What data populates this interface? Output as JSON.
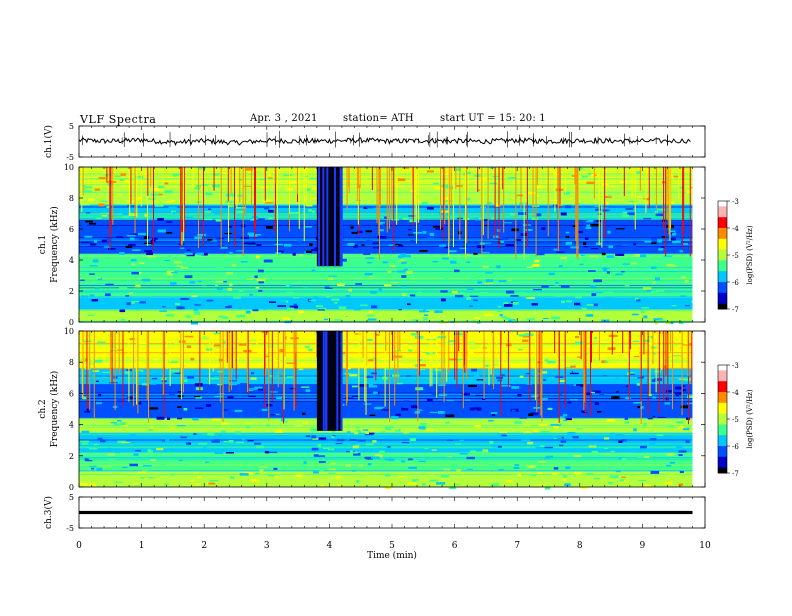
{
  "header": {
    "title": "VLF  Spectra",
    "date": "Apr. 3  , 2021",
    "station": "station= ATH",
    "start": "start  UT  =    15: 20: 1"
  },
  "chart_data": [
    {
      "type": "line",
      "panel": "ch1-waveform",
      "ylabel": "ch.1(V)",
      "ylim": [
        -5,
        5
      ],
      "yticks": [
        "5",
        "-5"
      ],
      "xlim": [
        0,
        10
      ],
      "line_color": "#000000",
      "x": [
        0,
        0.5,
        1,
        1.5,
        2,
        2.5,
        3,
        3.5,
        4,
        4.5,
        5,
        5.5,
        6,
        6.5,
        7,
        7.5,
        8,
        8.5,
        9,
        9.8
      ],
      "y": [
        0.4,
        0.1,
        0.5,
        -0.3,
        0.2,
        -0.4,
        0.3,
        0.1,
        0.2,
        0.4,
        0.1,
        0.3,
        0.2,
        0.0,
        0.4,
        0.1,
        0.3,
        0.2,
        0.1,
        0.3
      ]
    },
    {
      "type": "heatmap",
      "panel": "ch1-spectrogram",
      "ylabel": "ch.1\nFrequency (kHz)",
      "ylim": [
        0,
        10
      ],
      "yticks": [
        "0",
        "2",
        "4",
        "6",
        "8",
        "10"
      ],
      "xlim": [
        0,
        10
      ],
      "data_end_min": 9.8,
      "colorbar": {
        "label": "log(PSD) (V²/Hz)",
        "range": [
          -7,
          -3
        ],
        "ticks": [
          "-3",
          "-4",
          "-5",
          "-6",
          "-7"
        ],
        "colors": [
          "#000000",
          "#0000c8",
          "#0050ff",
          "#00c8ff",
          "#3cff8c",
          "#b4ff3c",
          "#ffff00",
          "#ff8c00",
          "#ff0000",
          "#ffb4b4",
          "#ffffff"
        ]
      },
      "band_levels": [
        {
          "f": [
            0,
            0.8
          ],
          "level": -5.2
        },
        {
          "f": [
            0.8,
            1.6
          ],
          "level": -5.9
        },
        {
          "f": [
            1.6,
            3.4
          ],
          "level": -5.6
        },
        {
          "f": [
            3.4,
            4.4
          ],
          "level": -5.4
        },
        {
          "f": [
            4.4,
            6.6
          ],
          "level": -6.3
        },
        {
          "f": [
            6.6,
            7.6
          ],
          "level": -5.8
        },
        {
          "f": [
            7.6,
            10
          ],
          "level": -4.9
        }
      ],
      "gap_min": [
        3.8,
        4.2
      ]
    },
    {
      "type": "heatmap",
      "panel": "ch2-spectrogram",
      "ylabel": "ch.2\nFrequency (kHz)",
      "ylim": [
        0,
        10
      ],
      "yticks": [
        "0",
        "2",
        "4",
        "6",
        "8",
        "10"
      ],
      "xlim": [
        0,
        10
      ],
      "data_end_min": 9.8,
      "colorbar": {
        "label": "log(PSD) (V²/Hz)",
        "range": [
          -7,
          -3
        ],
        "ticks": [
          "-3",
          "-4",
          "-5",
          "-6",
          "-7"
        ],
        "colors": [
          "#000000",
          "#0000c8",
          "#0050ff",
          "#00c8ff",
          "#3cff8c",
          "#b4ff3c",
          "#ffff00",
          "#ff8c00",
          "#ff0000",
          "#ffb4b4",
          "#ffffff"
        ]
      },
      "band_levels": [
        {
          "f": [
            0,
            1.0
          ],
          "level": -5.0
        },
        {
          "f": [
            1.0,
            2.2
          ],
          "level": -5.5
        },
        {
          "f": [
            2.2,
            3.5
          ],
          "level": -5.8
        },
        {
          "f": [
            3.5,
            4.4
          ],
          "level": -5.1
        },
        {
          "f": [
            4.4,
            6.6
          ],
          "level": -6.2
        },
        {
          "f": [
            6.6,
            7.6
          ],
          "level": -5.8
        },
        {
          "f": [
            7.6,
            10
          ],
          "level": -4.8
        }
      ],
      "gap_min": [
        3.8,
        4.2
      ]
    },
    {
      "type": "line",
      "panel": "ch3-waveform",
      "ylabel": "ch.3(V)",
      "ylim": [
        -5,
        5
      ],
      "yticks": [
        "5",
        "-5"
      ],
      "xlim": [
        0,
        10
      ],
      "line_color": "#000000",
      "x": [
        0,
        9.8
      ],
      "y": [
        0,
        0
      ]
    }
  ],
  "x_axis": {
    "label": "Time  (min)",
    "ticks": [
      "0",
      "1",
      "2",
      "3",
      "4",
      "5",
      "6",
      "7",
      "8",
      "9",
      "10"
    ],
    "range": [
      0,
      10
    ]
  }
}
